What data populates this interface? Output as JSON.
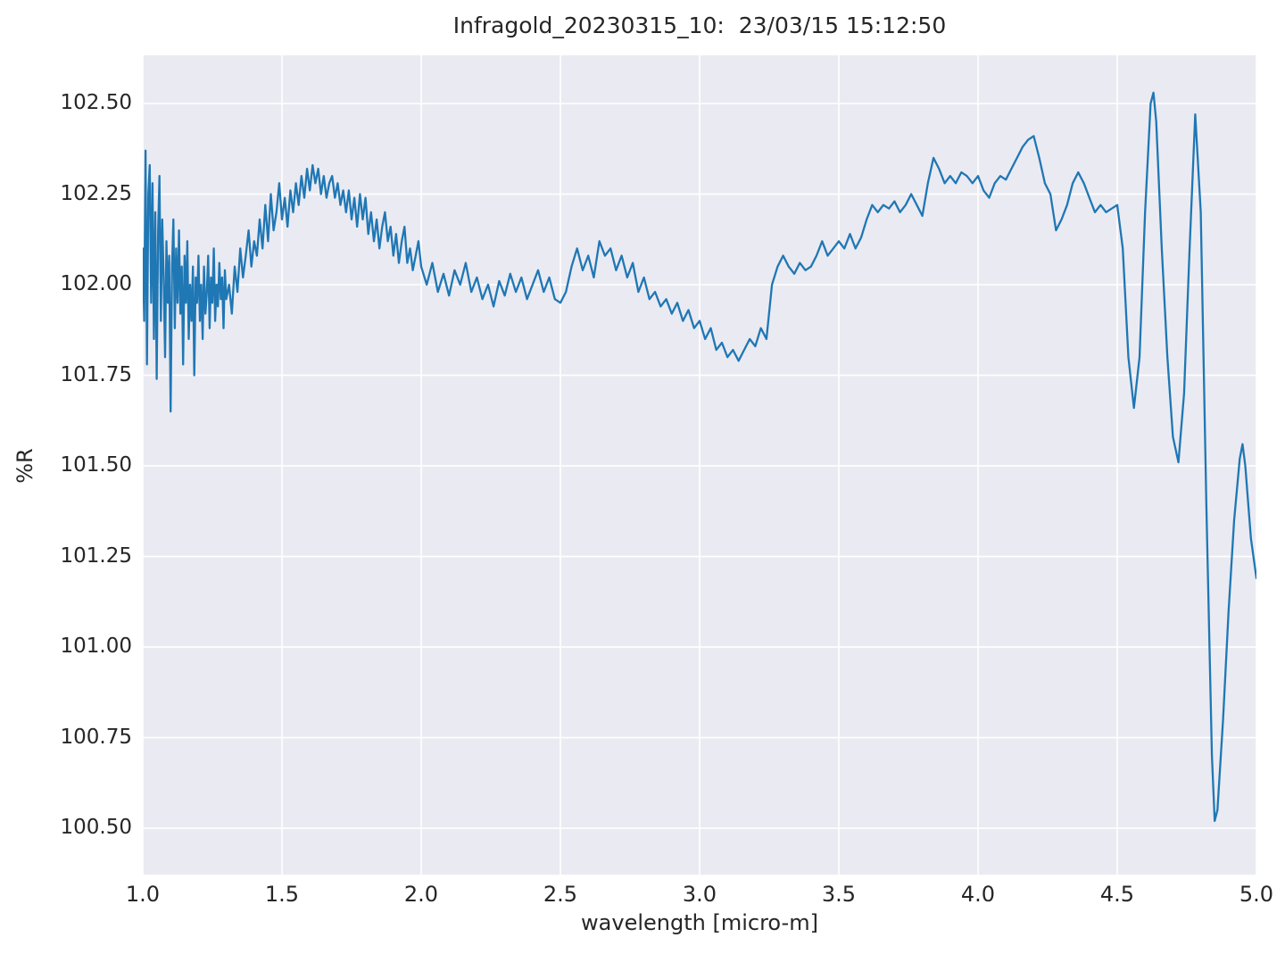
{
  "figure_background": "#ffffff",
  "chart_data": {
    "type": "line",
    "title": "Infragold_20230315_10:  23/03/15 15:12:50",
    "xlabel": "wavelength [micro-m]",
    "ylabel": "%R",
    "xlim": [
      1.0,
      5.0
    ],
    "ylim": [
      100.372,
      102.633
    ],
    "grid": true,
    "legend": false,
    "plot_bg": "#eaeaf2",
    "grid_color": "#ffffff",
    "line_color": "#1f77b4",
    "x_ticks": [
      1.0,
      1.5,
      2.0,
      2.5,
      3.0,
      3.5,
      4.0,
      4.5,
      5.0
    ],
    "x_tick_labels": [
      "1.0",
      "1.5",
      "2.0",
      "2.5",
      "3.0",
      "3.5",
      "4.0",
      "4.5",
      "5.0"
    ],
    "y_ticks": [
      100.5,
      100.75,
      101.0,
      101.25,
      101.5,
      101.75,
      102.0,
      102.25,
      102.5
    ],
    "y_tick_labels": [
      "100.50",
      "100.75",
      "101.00",
      "101.25",
      "101.50",
      "101.75",
      "102.00",
      "102.25",
      "102.50"
    ],
    "series": [
      {
        "name": "reflectance",
        "points": [
          [
            1.0,
            102.1
          ],
          [
            1.005,
            101.9
          ],
          [
            1.01,
            102.37
          ],
          [
            1.015,
            101.78
          ],
          [
            1.02,
            102.25
          ],
          [
            1.025,
            102.33
          ],
          [
            1.03,
            101.95
          ],
          [
            1.035,
            102.28
          ],
          [
            1.04,
            101.85
          ],
          [
            1.045,
            102.2
          ],
          [
            1.05,
            101.74
          ],
          [
            1.055,
            102.15
          ],
          [
            1.06,
            102.3
          ],
          [
            1.065,
            101.9
          ],
          [
            1.07,
            102.18
          ],
          [
            1.075,
            102.02
          ],
          [
            1.08,
            101.8
          ],
          [
            1.085,
            102.12
          ],
          [
            1.09,
            101.95
          ],
          [
            1.095,
            102.08
          ],
          [
            1.1,
            101.65
          ],
          [
            1.105,
            102.05
          ],
          [
            1.11,
            102.18
          ],
          [
            1.115,
            101.88
          ],
          [
            1.12,
            102.1
          ],
          [
            1.125,
            101.95
          ],
          [
            1.13,
            102.15
          ],
          [
            1.135,
            101.92
          ],
          [
            1.14,
            102.05
          ],
          [
            1.145,
            101.78
          ],
          [
            1.15,
            102.08
          ],
          [
            1.155,
            101.95
          ],
          [
            1.16,
            102.12
          ],
          [
            1.165,
            101.85
          ],
          [
            1.17,
            102.0
          ],
          [
            1.175,
            101.9
          ],
          [
            1.18,
            102.05
          ],
          [
            1.185,
            101.75
          ],
          [
            1.19,
            102.02
          ],
          [
            1.195,
            101.95
          ],
          [
            1.2,
            102.08
          ],
          [
            1.205,
            101.9
          ],
          [
            1.21,
            102.0
          ],
          [
            1.215,
            101.85
          ],
          [
            1.22,
            102.05
          ],
          [
            1.225,
            101.92
          ],
          [
            1.23,
            101.98
          ],
          [
            1.235,
            102.08
          ],
          [
            1.24,
            101.88
          ],
          [
            1.245,
            102.02
          ],
          [
            1.25,
            101.95
          ],
          [
            1.255,
            102.1
          ],
          [
            1.26,
            101.9
          ],
          [
            1.265,
            102.0
          ],
          [
            1.27,
            101.94
          ],
          [
            1.275,
            102.06
          ],
          [
            1.28,
            101.96
          ],
          [
            1.285,
            102.02
          ],
          [
            1.29,
            101.88
          ],
          [
            1.295,
            102.04
          ],
          [
            1.3,
            101.96
          ],
          [
            1.31,
            102.0
          ],
          [
            1.32,
            101.92
          ],
          [
            1.33,
            102.05
          ],
          [
            1.34,
            101.98
          ],
          [
            1.35,
            102.1
          ],
          [
            1.36,
            102.02
          ],
          [
            1.37,
            102.08
          ],
          [
            1.38,
            102.15
          ],
          [
            1.39,
            102.05
          ],
          [
            1.4,
            102.12
          ],
          [
            1.41,
            102.08
          ],
          [
            1.42,
            102.18
          ],
          [
            1.43,
            102.1
          ],
          [
            1.44,
            102.22
          ],
          [
            1.45,
            102.12
          ],
          [
            1.46,
            102.25
          ],
          [
            1.47,
            102.15
          ],
          [
            1.48,
            102.2
          ],
          [
            1.49,
            102.28
          ],
          [
            1.5,
            102.18
          ],
          [
            1.51,
            102.24
          ],
          [
            1.52,
            102.16
          ],
          [
            1.53,
            102.26
          ],
          [
            1.54,
            102.2
          ],
          [
            1.55,
            102.28
          ],
          [
            1.56,
            102.22
          ],
          [
            1.57,
            102.3
          ],
          [
            1.58,
            102.24
          ],
          [
            1.59,
            102.32
          ],
          [
            1.6,
            102.26
          ],
          [
            1.61,
            102.33
          ],
          [
            1.62,
            102.28
          ],
          [
            1.63,
            102.32
          ],
          [
            1.64,
            102.25
          ],
          [
            1.65,
            102.3
          ],
          [
            1.66,
            102.24
          ],
          [
            1.67,
            102.28
          ],
          [
            1.68,
            102.3
          ],
          [
            1.69,
            102.24
          ],
          [
            1.7,
            102.28
          ],
          [
            1.71,
            102.22
          ],
          [
            1.72,
            102.26
          ],
          [
            1.73,
            102.2
          ],
          [
            1.74,
            102.26
          ],
          [
            1.75,
            102.18
          ],
          [
            1.76,
            102.24
          ],
          [
            1.77,
            102.16
          ],
          [
            1.78,
            102.25
          ],
          [
            1.79,
            102.18
          ],
          [
            1.8,
            102.24
          ],
          [
            1.81,
            102.14
          ],
          [
            1.82,
            102.2
          ],
          [
            1.83,
            102.12
          ],
          [
            1.84,
            102.18
          ],
          [
            1.85,
            102.1
          ],
          [
            1.86,
            102.16
          ],
          [
            1.87,
            102.2
          ],
          [
            1.88,
            102.12
          ],
          [
            1.89,
            102.16
          ],
          [
            1.9,
            102.08
          ],
          [
            1.91,
            102.14
          ],
          [
            1.92,
            102.06
          ],
          [
            1.93,
            102.12
          ],
          [
            1.94,
            102.16
          ],
          [
            1.95,
            102.06
          ],
          [
            1.96,
            102.1
          ],
          [
            1.97,
            102.04
          ],
          [
            1.98,
            102.08
          ],
          [
            1.99,
            102.12
          ],
          [
            2.0,
            102.05
          ],
          [
            2.02,
            102.0
          ],
          [
            2.04,
            102.06
          ],
          [
            2.06,
            101.98
          ],
          [
            2.08,
            102.03
          ],
          [
            2.1,
            101.97
          ],
          [
            2.12,
            102.04
          ],
          [
            2.14,
            102.0
          ],
          [
            2.16,
            102.06
          ],
          [
            2.18,
            101.98
          ],
          [
            2.2,
            102.02
          ],
          [
            2.22,
            101.96
          ],
          [
            2.24,
            102.0
          ],
          [
            2.26,
            101.94
          ],
          [
            2.28,
            102.01
          ],
          [
            2.3,
            101.97
          ],
          [
            2.32,
            102.03
          ],
          [
            2.34,
            101.98
          ],
          [
            2.36,
            102.02
          ],
          [
            2.38,
            101.96
          ],
          [
            2.4,
            102.0
          ],
          [
            2.42,
            102.04
          ],
          [
            2.44,
            101.98
          ],
          [
            2.46,
            102.02
          ],
          [
            2.48,
            101.96
          ],
          [
            2.5,
            101.95
          ],
          [
            2.52,
            101.98
          ],
          [
            2.54,
            102.05
          ],
          [
            2.56,
            102.1
          ],
          [
            2.58,
            102.04
          ],
          [
            2.6,
            102.08
          ],
          [
            2.62,
            102.02
          ],
          [
            2.64,
            102.12
          ],
          [
            2.66,
            102.08
          ],
          [
            2.68,
            102.1
          ],
          [
            2.7,
            102.04
          ],
          [
            2.72,
            102.08
          ],
          [
            2.74,
            102.02
          ],
          [
            2.76,
            102.06
          ],
          [
            2.78,
            101.98
          ],
          [
            2.8,
            102.02
          ],
          [
            2.82,
            101.96
          ],
          [
            2.84,
            101.98
          ],
          [
            2.86,
            101.94
          ],
          [
            2.88,
            101.96
          ],
          [
            2.9,
            101.92
          ],
          [
            2.92,
            101.95
          ],
          [
            2.94,
            101.9
          ],
          [
            2.96,
            101.93
          ],
          [
            2.98,
            101.88
          ],
          [
            3.0,
            101.9
          ],
          [
            3.02,
            101.85
          ],
          [
            3.04,
            101.88
          ],
          [
            3.06,
            101.82
          ],
          [
            3.08,
            101.84
          ],
          [
            3.1,
            101.8
          ],
          [
            3.12,
            101.82
          ],
          [
            3.14,
            101.79
          ],
          [
            3.16,
            101.82
          ],
          [
            3.18,
            101.85
          ],
          [
            3.2,
            101.83
          ],
          [
            3.22,
            101.88
          ],
          [
            3.24,
            101.85
          ],
          [
            3.26,
            102.0
          ],
          [
            3.28,
            102.05
          ],
          [
            3.3,
            102.08
          ],
          [
            3.32,
            102.05
          ],
          [
            3.34,
            102.03
          ],
          [
            3.36,
            102.06
          ],
          [
            3.38,
            102.04
          ],
          [
            3.4,
            102.05
          ],
          [
            3.42,
            102.08
          ],
          [
            3.44,
            102.12
          ],
          [
            3.46,
            102.08
          ],
          [
            3.48,
            102.1
          ],
          [
            3.5,
            102.12
          ],
          [
            3.52,
            102.1
          ],
          [
            3.54,
            102.14
          ],
          [
            3.56,
            102.1
          ],
          [
            3.58,
            102.13
          ],
          [
            3.6,
            102.18
          ],
          [
            3.62,
            102.22
          ],
          [
            3.64,
            102.2
          ],
          [
            3.66,
            102.22
          ],
          [
            3.68,
            102.21
          ],
          [
            3.7,
            102.23
          ],
          [
            3.72,
            102.2
          ],
          [
            3.74,
            102.22
          ],
          [
            3.76,
            102.25
          ],
          [
            3.78,
            102.22
          ],
          [
            3.8,
            102.19
          ],
          [
            3.82,
            102.28
          ],
          [
            3.84,
            102.35
          ],
          [
            3.86,
            102.32
          ],
          [
            3.88,
            102.28
          ],
          [
            3.9,
            102.3
          ],
          [
            3.92,
            102.28
          ],
          [
            3.94,
            102.31
          ],
          [
            3.96,
            102.3
          ],
          [
            3.98,
            102.28
          ],
          [
            4.0,
            102.3
          ],
          [
            4.02,
            102.26
          ],
          [
            4.04,
            102.24
          ],
          [
            4.06,
            102.28
          ],
          [
            4.08,
            102.3
          ],
          [
            4.1,
            102.29
          ],
          [
            4.12,
            102.32
          ],
          [
            4.14,
            102.35
          ],
          [
            4.16,
            102.38
          ],
          [
            4.18,
            102.4
          ],
          [
            4.2,
            102.41
          ],
          [
            4.22,
            102.35
          ],
          [
            4.24,
            102.28
          ],
          [
            4.26,
            102.25
          ],
          [
            4.28,
            102.15
          ],
          [
            4.3,
            102.18
          ],
          [
            4.32,
            102.22
          ],
          [
            4.34,
            102.28
          ],
          [
            4.36,
            102.31
          ],
          [
            4.38,
            102.28
          ],
          [
            4.4,
            102.24
          ],
          [
            4.42,
            102.2
          ],
          [
            4.44,
            102.22
          ],
          [
            4.46,
            102.2
          ],
          [
            4.48,
            102.21
          ],
          [
            4.5,
            102.22
          ],
          [
            4.52,
            102.1
          ],
          [
            4.54,
            101.8
          ],
          [
            4.56,
            101.66
          ],
          [
            4.58,
            101.8
          ],
          [
            4.6,
            102.2
          ],
          [
            4.62,
            102.5
          ],
          [
            4.63,
            102.53
          ],
          [
            4.64,
            102.45
          ],
          [
            4.66,
            102.1
          ],
          [
            4.68,
            101.8
          ],
          [
            4.7,
            101.58
          ],
          [
            4.72,
            101.51
          ],
          [
            4.74,
            101.7
          ],
          [
            4.76,
            102.1
          ],
          [
            4.78,
            102.47
          ],
          [
            4.8,
            102.2
          ],
          [
            4.82,
            101.4
          ],
          [
            4.84,
            100.7
          ],
          [
            4.85,
            100.52
          ],
          [
            4.86,
            100.55
          ],
          [
            4.88,
            100.8
          ],
          [
            4.9,
            101.1
          ],
          [
            4.92,
            101.35
          ],
          [
            4.94,
            101.52
          ],
          [
            4.95,
            101.56
          ],
          [
            4.96,
            101.5
          ],
          [
            4.98,
            101.3
          ],
          [
            5.0,
            101.19
          ]
        ]
      }
    ]
  }
}
